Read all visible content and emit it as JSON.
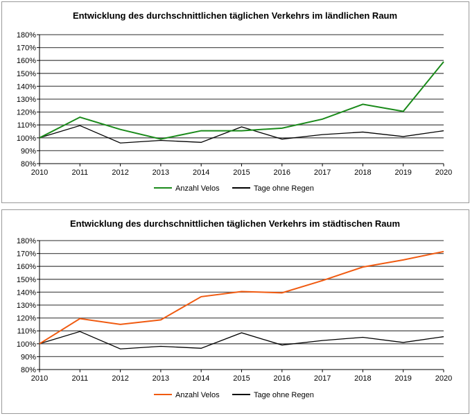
{
  "chart_data": [
    {
      "type": "line",
      "title": "Entwicklung des durchschnittlichen täglichen Verkehrs im ländlichen Raum",
      "xlabel": "",
      "ylabel": "",
      "categories": [
        "2010",
        "2011",
        "2012",
        "2013",
        "2014",
        "2015",
        "2016",
        "2017",
        "2018",
        "2019",
        "2020"
      ],
      "yticks": [
        "80%",
        "90%",
        "100%",
        "110%",
        "120%",
        "130%",
        "140%",
        "150%",
        "160%",
        "170%",
        "180%"
      ],
      "ylim": [
        80,
        180
      ],
      "grid": true,
      "legend": "bottom",
      "series": [
        {
          "name": "Anzahl Velos",
          "color": "#1a8a1a",
          "values": [
            100,
            116,
            106.5,
            99,
            105.5,
            105.5,
            107.5,
            114.5,
            126,
            120.5,
            159
          ]
        },
        {
          "name": "Tage ohne Regen",
          "color": "#000000",
          "values": [
            100,
            109.5,
            96,
            98,
            96.5,
            108.5,
            99,
            102.5,
            104.5,
            101,
            105.5
          ]
        }
      ]
    },
    {
      "type": "line",
      "title": "Entwicklung des durchschnittlichen täglichen Verkehrs im städtischen Raum",
      "xlabel": "",
      "ylabel": "",
      "categories": [
        "2010",
        "2011",
        "2012",
        "2013",
        "2014",
        "2015",
        "2016",
        "2017",
        "2018",
        "2019",
        "2020"
      ],
      "yticks": [
        "80%",
        "90%",
        "100%",
        "110%",
        "120%",
        "130%",
        "140%",
        "150%",
        "160%",
        "170%",
        "180%"
      ],
      "ylim": [
        80,
        180
      ],
      "grid": true,
      "legend": "bottom",
      "series": [
        {
          "name": "Anzahl Velos",
          "color": "#f05a10",
          "values": [
            100,
            119.5,
            115,
            118.5,
            136.5,
            140.5,
            139.5,
            149,
            159.5,
            165,
            171.5
          ]
        },
        {
          "name": "Tage ohne Regen",
          "color": "#000000",
          "values": [
            100,
            109.5,
            96,
            98,
            96.5,
            108.5,
            99,
            102.5,
            105,
            101,
            105.5
          ]
        }
      ]
    }
  ]
}
